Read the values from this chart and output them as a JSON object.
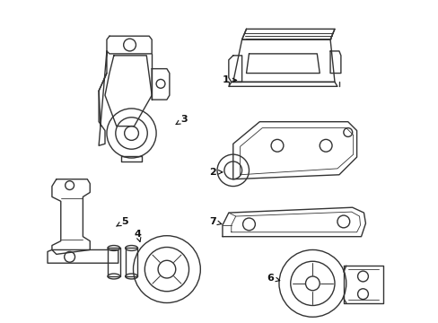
{
  "background_color": "#ffffff",
  "line_color": "#333333",
  "lw": 1.0,
  "fig_width": 4.89,
  "fig_height": 3.6,
  "dpi": 100
}
